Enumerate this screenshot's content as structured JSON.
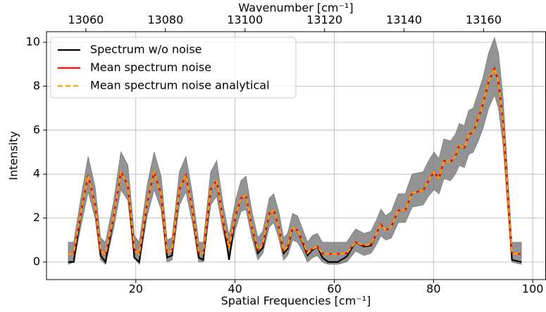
{
  "chart_data": {
    "type": "line",
    "xlabel": "Spatial Frequencies [cm⁻¹]",
    "ylabel": "Intensity",
    "x2label": "Wavenumber [cm⁻¹]",
    "xlim": [
      2.0,
      102.6
    ],
    "xticks": [
      20,
      40,
      60,
      80,
      100
    ],
    "x2lim": [
      13050.1,
      13175.6
    ],
    "x2ticks": [
      13060,
      13080,
      13100,
      13120,
      13140,
      13160
    ],
    "ylim": [
      -0.8,
      10.48
    ],
    "yticks": [
      0,
      2,
      4,
      6,
      8,
      10
    ],
    "grid": true,
    "legend": "upper left",
    "x": [
      6.4,
      7.5,
      9.0,
      10.4,
      11.8,
      12.9,
      13.9,
      15.5,
      17.0,
      18.4,
      19.7,
      20.7,
      22.3,
      23.7,
      25.1,
      26.3,
      27.3,
      28.8,
      30.1,
      31.4,
      32.7,
      33.6,
      35.1,
      36.3,
      37.6,
      38.8,
      40.1,
      41.2,
      42.2,
      43.4,
      44.6,
      45.6,
      46.9,
      47.8,
      48.8,
      49.8,
      50.6,
      51.6,
      52.6,
      53.6,
      54.6,
      55.6,
      56.6,
      57.6,
      58.8,
      60.7,
      62.5,
      64.3,
      66,
      67.4,
      68.5,
      69.4,
      70.4,
      71.5,
      72.9,
      74.3,
      75.7,
      77.9,
      79,
      80.1,
      81.1,
      82.1,
      83.4,
      84.4,
      85.2,
      86.2,
      87.1,
      88,
      89,
      90,
      91.1,
      92.3,
      93.1,
      94,
      95,
      95.8,
      97.7
    ],
    "band": {
      "color": "#808080",
      "upper": [
        0.9,
        0.9,
        3.0,
        4.8,
        3.4,
        1.1,
        0.9,
        2.7,
        5.0,
        4.4,
        1.2,
        0.9,
        3.5,
        5.0,
        3.9,
        1.0,
        1.1,
        4.1,
        4.8,
        3.1,
        0.9,
        0.9,
        4.1,
        4.6,
        2.6,
        1.2,
        2.8,
        3.7,
        3.9,
        2.3,
        1.1,
        1.4,
        2.9,
        3.1,
        2.3,
        1.1,
        1.3,
        2.2,
        2.1,
        1.5,
        0.9,
        1.2,
        1.3,
        0.9,
        0.9,
        0.9,
        0.9,
        1.5,
        1.3,
        1.4,
        1.9,
        2.4,
        2.1,
        2.3,
        3.1,
        3.1,
        4.0,
        4.1,
        4.6,
        5.0,
        4.7,
        5.6,
        5.5,
        5.8,
        6.3,
        6.2,
        6.9,
        7.0,
        7.7,
        8.4,
        9.5,
        10.2,
        9.5,
        7.5,
        3.8,
        0.9,
        0.9
      ],
      "lower": [
        -0.1,
        0,
        1.7,
        3.2,
        2.0,
        0.1,
        -0.1,
        1.5,
        3.3,
        2.8,
        0.2,
        -0.1,
        2.1,
        3.3,
        2.4,
        0,
        0.1,
        2.6,
        3.2,
        1.8,
        0,
        0,
        2.6,
        3.0,
        1.4,
        0.2,
        1.5,
        2.3,
        2.4,
        1.1,
        0.1,
        0.4,
        1.6,
        1.8,
        1.1,
        0.1,
        0.3,
        1.0,
        0.9,
        0.5,
        0,
        0.2,
        0.3,
        0,
        -0.1,
        -0.1,
        0,
        0.5,
        0.3,
        0.4,
        0.8,
        1.2,
        1.0,
        1.1,
        1.8,
        1.8,
        2.5,
        2.6,
        3.0,
        3.3,
        3.1,
        3.8,
        3.7,
        4.0,
        4.4,
        4.3,
        4.9,
        5.0,
        5.5,
        6.1,
        7.0,
        7.6,
        7.0,
        5.4,
        2.3,
        0,
        -0.1
      ]
    },
    "series": [
      {
        "name": "Spectrum w/o noise",
        "color": "#000000",
        "dash": false,
        "values": [
          0,
          0,
          2.3,
          3.95,
          2.6,
          0.3,
          0,
          2.0,
          4.1,
          3.5,
          0.2,
          0,
          2.7,
          4.1,
          3.1,
          0.2,
          0.3,
          3.3,
          3.95,
          2.4,
          0.2,
          0.1,
          3.3,
          3.7,
          1.9,
          0.1,
          2.1,
          2.9,
          3.05,
          1.6,
          0.4,
          0.65,
          2.2,
          2.35,
          1.6,
          0.4,
          0.6,
          1.55,
          1.45,
          0.9,
          0.3,
          0.55,
          0.7,
          0.2,
          0,
          0,
          0.25,
          0.9,
          0.7,
          0.75,
          1.3,
          1.7,
          1.45,
          1.6,
          2.35,
          2.35,
          3.15,
          3.25,
          3.7,
          4.1,
          3.8,
          4.6,
          4.55,
          4.8,
          5.3,
          5.2,
          5.8,
          5.9,
          6.5,
          7.2,
          8.2,
          8.8,
          8.2,
          6.4,
          3,
          0.1,
          0
        ]
      },
      {
        "name": "Mean spectrum noise",
        "color": "#ff0000",
        "dash": false,
        "values": [
          0.35,
          0.4,
          2.3,
          3.95,
          2.6,
          0.5,
          0.35,
          2.0,
          4.1,
          3.5,
          0.6,
          0.35,
          2.7,
          4.1,
          3.1,
          0.45,
          0.5,
          3.3,
          3.95,
          2.4,
          0.4,
          0.4,
          3.3,
          3.7,
          1.9,
          0.6,
          2.1,
          2.9,
          3.05,
          1.6,
          0.55,
          0.8,
          2.2,
          2.35,
          1.6,
          0.5,
          0.7,
          1.55,
          1.45,
          0.95,
          0.4,
          0.6,
          0.7,
          0.4,
          0.37,
          0.37,
          0.4,
          0.9,
          0.75,
          0.8,
          1.3,
          1.7,
          1.45,
          1.6,
          2.35,
          2.35,
          3.15,
          3.25,
          3.7,
          4.1,
          3.8,
          4.6,
          4.55,
          4.8,
          5.3,
          5.2,
          5.8,
          5.9,
          6.5,
          7.2,
          8.2,
          8.8,
          8.2,
          6.4,
          3,
          0.4,
          0.35
        ]
      },
      {
        "name": "Mean spectrum noise analytical",
        "color": "#ffa500",
        "dash": true,
        "values": [
          0.35,
          0.4,
          2.3,
          3.95,
          2.6,
          0.5,
          0.35,
          2.0,
          4.1,
          3.5,
          0.6,
          0.35,
          2.7,
          4.1,
          3.1,
          0.45,
          0.5,
          3.3,
          3.95,
          2.4,
          0.4,
          0.4,
          3.3,
          3.7,
          1.9,
          0.6,
          2.1,
          2.9,
          3.05,
          1.6,
          0.55,
          0.8,
          2.2,
          2.35,
          1.6,
          0.5,
          0.7,
          1.55,
          1.45,
          0.95,
          0.4,
          0.6,
          0.7,
          0.4,
          0.37,
          0.37,
          0.4,
          0.9,
          0.75,
          0.8,
          1.3,
          1.7,
          1.45,
          1.6,
          2.35,
          2.35,
          3.15,
          3.25,
          3.7,
          4.1,
          3.8,
          4.6,
          4.55,
          4.8,
          5.3,
          5.2,
          5.8,
          5.9,
          6.5,
          7.2,
          8.2,
          8.8,
          8.2,
          6.4,
          3,
          0.4,
          0.35
        ]
      }
    ]
  }
}
